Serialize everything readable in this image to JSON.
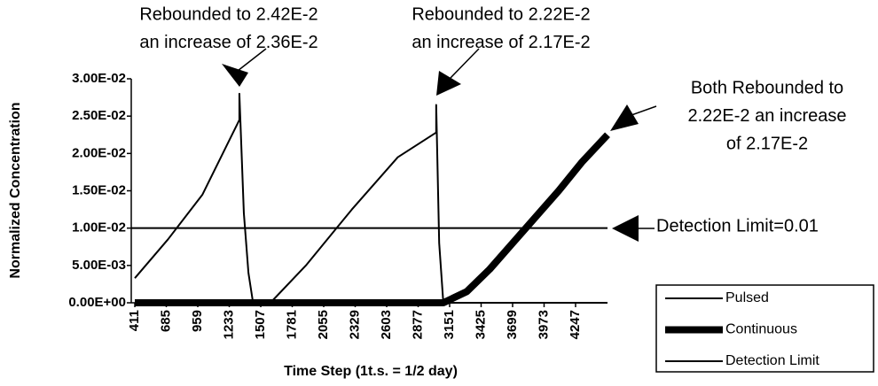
{
  "chart_data": {
    "type": "line",
    "xlabel": "Time Step (1t.s. = 1/2 day)",
    "ylabel": "Normalized Concentration",
    "xlim": [
      380,
      4525
    ],
    "xticks": [
      411,
      685,
      959,
      1233,
      1507,
      1781,
      2055,
      2329,
      2603,
      2877,
      3151,
      3425,
      3699,
      3973,
      4247
    ],
    "ylim": [
      0,
      0.03
    ],
    "yticks": [
      {
        "value": 0,
        "label": "0.00E+00"
      },
      {
        "value": 0.005,
        "label": "5.00E-03"
      },
      {
        "value": 0.01,
        "label": "1.00E-02"
      },
      {
        "value": 0.015,
        "label": "1.50E-02"
      },
      {
        "value": 0.02,
        "label": "2.00E-02"
      },
      {
        "value": 0.025,
        "label": "2.50E-02"
      },
      {
        "value": 0.03,
        "label": "3.00E-02"
      }
    ],
    "series": [
      {
        "name": "Pulsed",
        "color": "#000000",
        "width": 2,
        "x": [
          411,
          700,
          1000,
          1321,
          1321,
          1360,
          1400,
          1440,
          1591,
          1900,
          2300,
          2700,
          3034,
          3034,
          3060,
          3096,
          4525
        ],
        "values": [
          0.0033,
          0.0085,
          0.0145,
          0.0245,
          0.028,
          0.012,
          0.004,
          0,
          0,
          0.005,
          0.0125,
          0.0195,
          0.0228,
          0.0265,
          0.008,
          0,
          0
        ]
      },
      {
        "name": "Continuous",
        "color": "#000000",
        "width": 8,
        "x": [
          411,
          3096,
          3300,
          3500,
          3700,
          3900,
          4100,
          4300,
          4525
        ],
        "values": [
          0,
          0,
          0.0015,
          0.0045,
          0.008,
          0.0115,
          0.015,
          0.0188,
          0.0225
        ]
      },
      {
        "name": "Detection Limit",
        "color": "#000000",
        "width": 2,
        "x": [
          380,
          4525
        ],
        "values": [
          0.01,
          0.01
        ]
      }
    ],
    "annotations": [
      {
        "lines": [
          "Rebounded to 2.42E-2",
          "an increase of 2.36E-2"
        ]
      },
      {
        "lines": [
          "Rebounded to 2.22E-2",
          "an increase of 2.17E-2"
        ]
      },
      {
        "lines": [
          "Both Rebounded to",
          "2.22E-2  an increase",
          "of 2.17E-2"
        ]
      },
      {
        "lines": [
          "Detection Limit=0.01"
        ]
      }
    ]
  }
}
